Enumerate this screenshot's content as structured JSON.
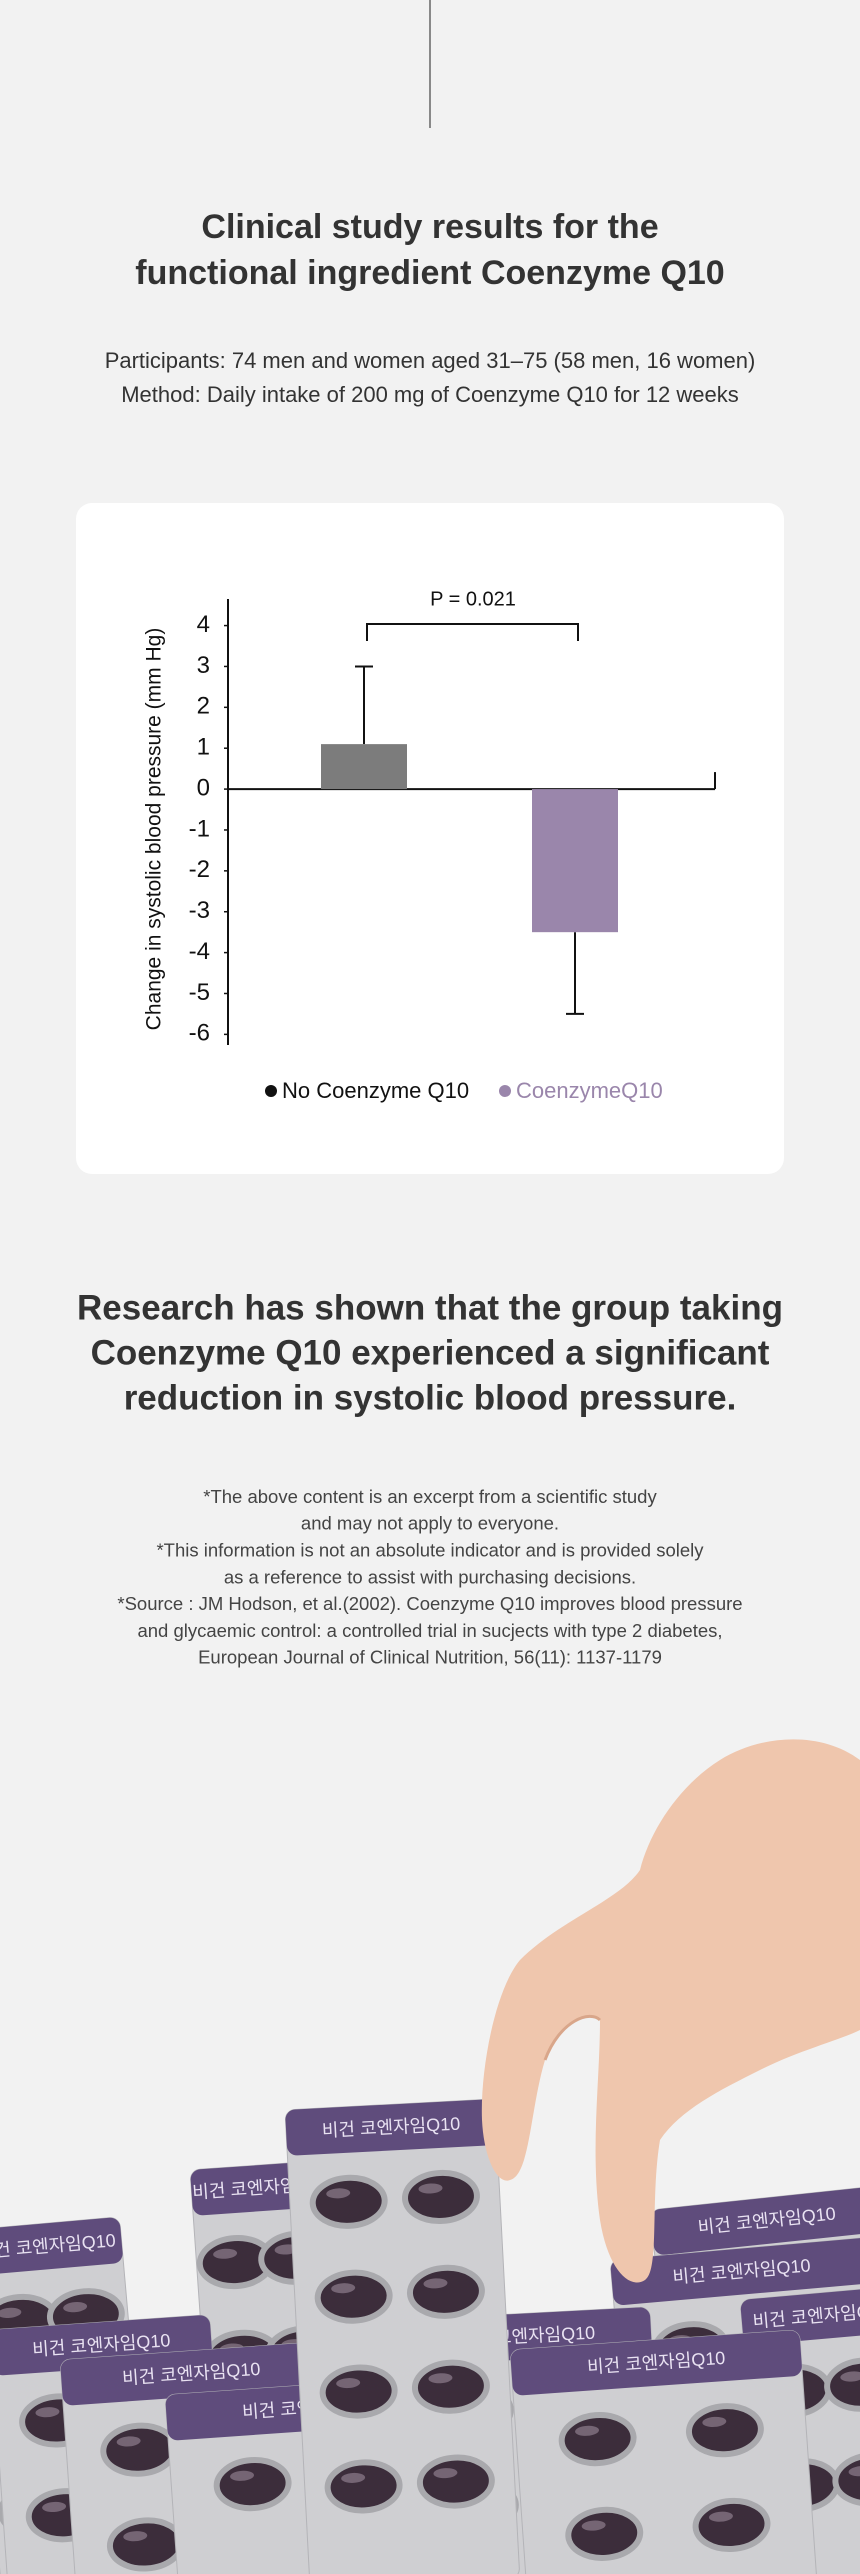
{
  "header": {
    "title_lines": [
      "Clinical study results for the",
      "functional ingredient Coenzyme Q10"
    ],
    "participants": "Participants: 74 men and women aged 31–75 (58 men, 16 women)",
    "method": "Method: Daily intake of 200 mg of Coenzyme Q10 for 12 weeks"
  },
  "chart_data": {
    "type": "bar",
    "y_label": "Change in systolic blood pressure (mm Hg)",
    "annotation": "P = 0.021",
    "series": [
      {
        "name": "No Coenzyme Q10",
        "color": "#7c7c7c",
        "values": [
          1.1
        ],
        "errors": [
          1.9
        ]
      },
      {
        "name": "CoenzymeQ10",
        "color": "#9a86ab",
        "values": [
          -3.5
        ],
        "errors": [
          2.0
        ]
      }
    ],
    "ylim": [
      -6.26,
      4.65
    ],
    "yticks": [
      4,
      3,
      2,
      1,
      0,
      -1,
      -2,
      -3,
      -4,
      -5,
      -6
    ],
    "grid": false,
    "legend": "bottom"
  },
  "conclusion": [
    "Research has shown that the group taking",
    "Coenzyme Q10 experienced a significant",
    "reduction in systolic blood pressure."
  ],
  "notes": [
    "*The above content is an excerpt from a scientific study",
    "and may not apply to everyone.",
    "*This information is not an absolute indicator and is provided solely",
    "as a reference to assist with purchasing decisions.",
    "*Source : JM Hodson, et al.(2002). Coenzyme Q10 improves blood pressure",
    "and glycaemic control: a controlled trial in sucjects  with type 2 diabetes,",
    "European Journal of Clinical Nutrition, 56(11): 1137-1179"
  ],
  "package_label": "비건 코엔자임Q10"
}
